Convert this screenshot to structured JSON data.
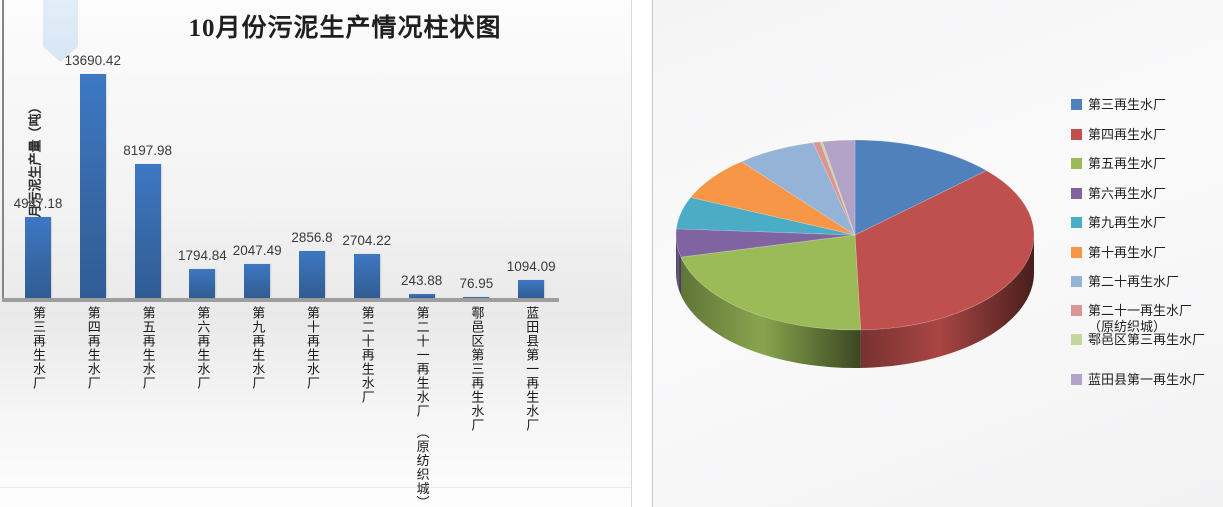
{
  "bar_chart_object": {
    "title": "10月份污泥生产情况柱状图",
    "y_axis_title": "当月污泥生产量（吨）"
  },
  "chart_data": [
    {
      "type": "bar",
      "title": "10月份污泥生产情况柱状图",
      "xlabel": "",
      "ylabel": "当月污泥生产量（吨）",
      "categories": [
        "第三再生水厂",
        "第四再生水厂",
        "第五再生水厂",
        "第六再生水厂",
        "第九再生水厂",
        "第十再生水厂",
        "第二十再生水厂",
        "第二十一再生水厂　（原纺织城）",
        "鄠邑区第三再生水厂",
        "蓝田县第一再生水厂"
      ],
      "values": [
        4947.18,
        13690.42,
        8197.98,
        1794.84,
        2047.49,
        2856.8,
        2704.22,
        243.88,
        76.95,
        1094.09
      ],
      "data_labels": [
        "4947.18",
        "13690.42",
        "8197.98",
        "1794.84",
        "2047.49",
        "2856.8",
        "2704.22",
        "243.88",
        "76.95",
        "1094.09"
      ],
      "bar_color_top": "#3d78c3",
      "bar_color_bottom": "#305c96",
      "axis_color": "#9e9e9e",
      "grid": false,
      "legend": false,
      "y_axis_tick_labels_visible": false
    },
    {
      "type": "pie",
      "style": "3d",
      "labels": [
        "第三再生水厂",
        "第四再生水厂",
        "第五再生水厂",
        "第六再生水厂",
        "第九再生水厂",
        "第十再生水厂",
        "第二十再生水厂",
        "第二十一再生水厂　（原纺织城）",
        "鄠邑区第三再生水厂",
        "蓝田县第一再生水厂"
      ],
      "values": [
        4947.18,
        13690.42,
        8197.98,
        1794.84,
        2047.49,
        2856.8,
        2704.22,
        243.88,
        76.95,
        1094.09
      ],
      "colors": [
        "#4F81BD",
        "#C0504D",
        "#9BBB59",
        "#8064A2",
        "#4BACC6",
        "#F79646",
        "#95B3D7",
        "#D99694",
        "#C3D69B",
        "#B3A2C7"
      ],
      "start_angle_deg": 0,
      "direction": "clockwise",
      "legend_position": "right",
      "title": ""
    }
  ]
}
